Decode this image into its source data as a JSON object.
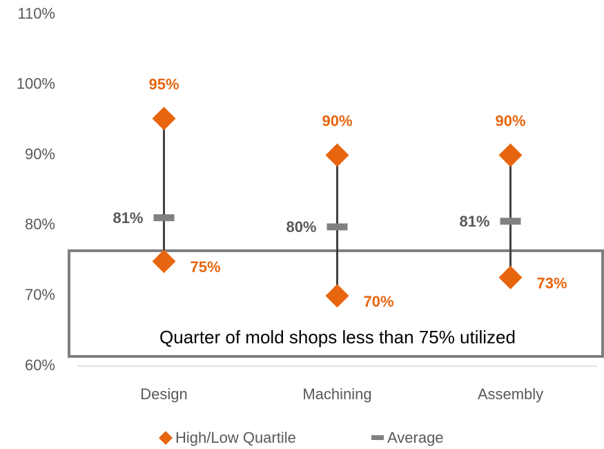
{
  "chart_data": {
    "type": "highlow",
    "categories": [
      "Design",
      "Machining",
      "Assembly"
    ],
    "series": [
      {
        "name": "High/Low Quartile",
        "color": "#e8650f",
        "high": [
          95.2,
          90,
          90
        ],
        "high_labels": [
          "95%",
          "90%",
          "90%"
        ],
        "low": [
          74.9,
          70,
          72.6
        ],
        "low_labels": [
          "75%",
          "70%",
          "73%"
        ]
      },
      {
        "name": "Average",
        "color": "#808080",
        "values": [
          81.1,
          79.8,
          80.6
        ],
        "value_labels": [
          "81%",
          "80%",
          "81%"
        ]
      }
    ],
    "ylim": [
      60,
      110
    ],
    "yticks": [
      {
        "value": 60,
        "label": "60%"
      },
      {
        "value": 70,
        "label": "70%"
      },
      {
        "value": 80,
        "label": "80%"
      },
      {
        "value": 90,
        "label": "90%"
      },
      {
        "value": 100,
        "label": "100%"
      },
      {
        "value": 110,
        "label": "110%"
      }
    ],
    "annotation": "Quarter of mold shops less than 75% utilized",
    "grid": false
  }
}
